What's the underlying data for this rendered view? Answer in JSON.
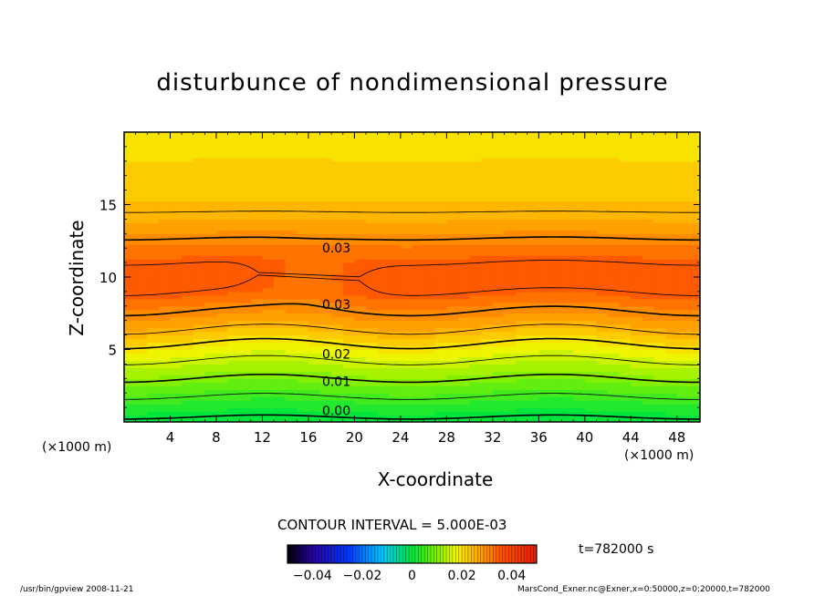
{
  "figure": {
    "title": "disturbunce of nondimensional pressure",
    "contour_interval": "CONTOUR INTERVAL = 5.000E-03",
    "time_label": "t=782000 s",
    "footer_left": "/usr/bin/gpview   2008-11-21",
    "footer_right": "MarsCond_Exner.nc@Exner,x=0:50000,z=0:20000,t=782000",
    "xunit_left": "(×1000 m)",
    "xunit_right": "(×1000 m)",
    "colors": {
      "low": "#00e040",
      "green_yellow": "#a8f000",
      "yellow": "#f4f400",
      "orange": "#ffa000",
      "red_orange": "#ff5000"
    }
  },
  "chart_data": {
    "type": "heatmap",
    "title": "disturbunce of nondimensional pressure",
    "xlabel": "X-coordinate",
    "ylabel": "Z-coordinate",
    "xlim": [
      0,
      50
    ],
    "ylim": [
      0,
      20
    ],
    "x_unit": "(×1000 m)",
    "y_unit": "(×1000 m)",
    "x_ticks": [
      4,
      8,
      12,
      16,
      20,
      24,
      28,
      32,
      36,
      40,
      44,
      48
    ],
    "y_ticks": [
      5,
      10,
      15
    ],
    "contour_interval": 0.005,
    "contour_labels": [
      {
        "text": "0.03",
        "x": 17,
        "z": 12.0
      },
      {
        "text": "0.03",
        "x": 17,
        "z": 8.1
      },
      {
        "text": "0.02",
        "x": 17,
        "z": 4.7
      },
      {
        "text": "0.01",
        "x": 17,
        "z": 2.8
      },
      {
        "text": "0.00",
        "x": 17,
        "z": 0.8
      }
    ],
    "colorbar": {
      "min": -0.05,
      "max": 0.05,
      "tick_values": [
        -0.04,
        -0.02,
        0,
        0.02,
        0.04
      ],
      "tick_labels": [
        "−0.04",
        "−0.02",
        "0",
        "0.02",
        "0.04"
      ]
    },
    "profile": {
      "z": [
        0,
        1,
        2,
        3,
        4,
        5,
        6,
        7,
        8,
        9,
        10,
        11,
        12,
        13,
        14,
        15,
        17,
        20
      ],
      "value": [
        -0.001,
        0.002,
        0.006,
        0.01,
        0.014,
        0.018,
        0.023,
        0.028,
        0.031,
        0.035,
        0.036,
        0.035,
        0.032,
        0.029,
        0.026,
        0.024,
        0.022,
        0.02
      ]
    }
  }
}
